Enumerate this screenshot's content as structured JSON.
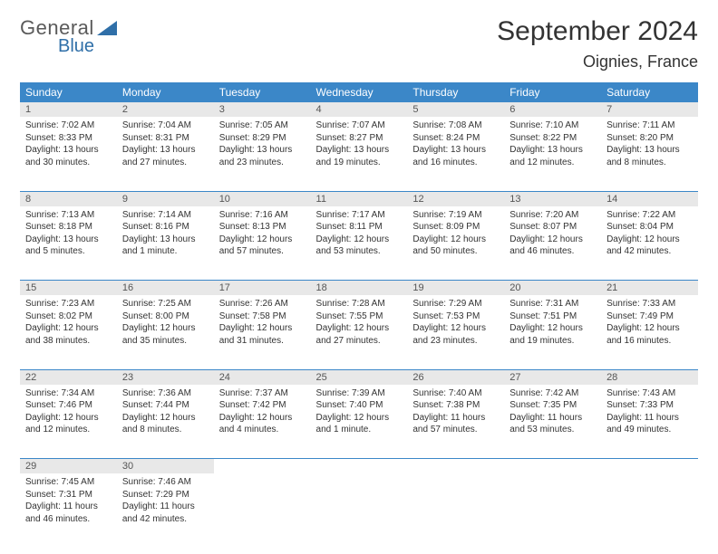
{
  "brand": {
    "top": "General",
    "bottom": "Blue"
  },
  "title": "September 2024",
  "location": "Oignies, France",
  "headers": [
    "Sunday",
    "Monday",
    "Tuesday",
    "Wednesday",
    "Thursday",
    "Friday",
    "Saturday"
  ],
  "colors": {
    "header_bg": "#3b87c8",
    "header_fg": "#ffffff",
    "daynum_bg": "#e8e8e8",
    "body_bg": "#ffffff",
    "accent": "#2f6fa8",
    "text": "#333333",
    "logo_gray": "#5a5a5a"
  },
  "weeks": [
    [
      {
        "n": "1",
        "sr": "7:02 AM",
        "ss": "8:33 PM",
        "dl": "13 hours and 30 minutes."
      },
      {
        "n": "2",
        "sr": "7:04 AM",
        "ss": "8:31 PM",
        "dl": "13 hours and 27 minutes."
      },
      {
        "n": "3",
        "sr": "7:05 AM",
        "ss": "8:29 PM",
        "dl": "13 hours and 23 minutes."
      },
      {
        "n": "4",
        "sr": "7:07 AM",
        "ss": "8:27 PM",
        "dl": "13 hours and 19 minutes."
      },
      {
        "n": "5",
        "sr": "7:08 AM",
        "ss": "8:24 PM",
        "dl": "13 hours and 16 minutes."
      },
      {
        "n": "6",
        "sr": "7:10 AM",
        "ss": "8:22 PM",
        "dl": "13 hours and 12 minutes."
      },
      {
        "n": "7",
        "sr": "7:11 AM",
        "ss": "8:20 PM",
        "dl": "13 hours and 8 minutes."
      }
    ],
    [
      {
        "n": "8",
        "sr": "7:13 AM",
        "ss": "8:18 PM",
        "dl": "13 hours and 5 minutes."
      },
      {
        "n": "9",
        "sr": "7:14 AM",
        "ss": "8:16 PM",
        "dl": "13 hours and 1 minute."
      },
      {
        "n": "10",
        "sr": "7:16 AM",
        "ss": "8:13 PM",
        "dl": "12 hours and 57 minutes."
      },
      {
        "n": "11",
        "sr": "7:17 AM",
        "ss": "8:11 PM",
        "dl": "12 hours and 53 minutes."
      },
      {
        "n": "12",
        "sr": "7:19 AM",
        "ss": "8:09 PM",
        "dl": "12 hours and 50 minutes."
      },
      {
        "n": "13",
        "sr": "7:20 AM",
        "ss": "8:07 PM",
        "dl": "12 hours and 46 minutes."
      },
      {
        "n": "14",
        "sr": "7:22 AM",
        "ss": "8:04 PM",
        "dl": "12 hours and 42 minutes."
      }
    ],
    [
      {
        "n": "15",
        "sr": "7:23 AM",
        "ss": "8:02 PM",
        "dl": "12 hours and 38 minutes."
      },
      {
        "n": "16",
        "sr": "7:25 AM",
        "ss": "8:00 PM",
        "dl": "12 hours and 35 minutes."
      },
      {
        "n": "17",
        "sr": "7:26 AM",
        "ss": "7:58 PM",
        "dl": "12 hours and 31 minutes."
      },
      {
        "n": "18",
        "sr": "7:28 AM",
        "ss": "7:55 PM",
        "dl": "12 hours and 27 minutes."
      },
      {
        "n": "19",
        "sr": "7:29 AM",
        "ss": "7:53 PM",
        "dl": "12 hours and 23 minutes."
      },
      {
        "n": "20",
        "sr": "7:31 AM",
        "ss": "7:51 PM",
        "dl": "12 hours and 19 minutes."
      },
      {
        "n": "21",
        "sr": "7:33 AM",
        "ss": "7:49 PM",
        "dl": "12 hours and 16 minutes."
      }
    ],
    [
      {
        "n": "22",
        "sr": "7:34 AM",
        "ss": "7:46 PM",
        "dl": "12 hours and 12 minutes."
      },
      {
        "n": "23",
        "sr": "7:36 AM",
        "ss": "7:44 PM",
        "dl": "12 hours and 8 minutes."
      },
      {
        "n": "24",
        "sr": "7:37 AM",
        "ss": "7:42 PM",
        "dl": "12 hours and 4 minutes."
      },
      {
        "n": "25",
        "sr": "7:39 AM",
        "ss": "7:40 PM",
        "dl": "12 hours and 1 minute."
      },
      {
        "n": "26",
        "sr": "7:40 AM",
        "ss": "7:38 PM",
        "dl": "11 hours and 57 minutes."
      },
      {
        "n": "27",
        "sr": "7:42 AM",
        "ss": "7:35 PM",
        "dl": "11 hours and 53 minutes."
      },
      {
        "n": "28",
        "sr": "7:43 AM",
        "ss": "7:33 PM",
        "dl": "11 hours and 49 minutes."
      }
    ],
    [
      {
        "n": "29",
        "sr": "7:45 AM",
        "ss": "7:31 PM",
        "dl": "11 hours and 46 minutes."
      },
      {
        "n": "30",
        "sr": "7:46 AM",
        "ss": "7:29 PM",
        "dl": "11 hours and 42 minutes."
      },
      null,
      null,
      null,
      null,
      null
    ]
  ],
  "labels": {
    "sunrise": "Sunrise:",
    "sunset": "Sunset:",
    "daylight": "Daylight:"
  }
}
